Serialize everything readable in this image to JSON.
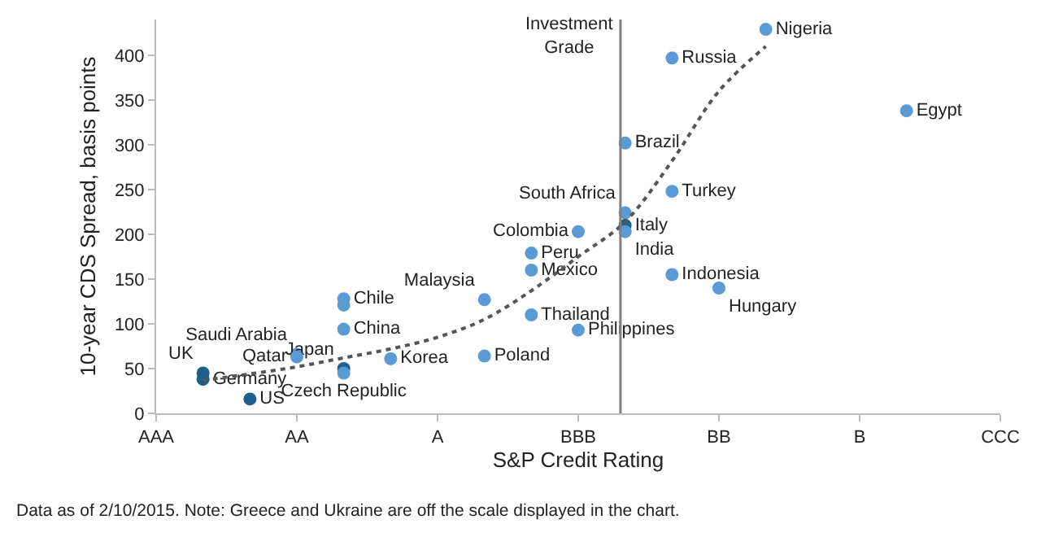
{
  "chart_data": {
    "type": "scatter",
    "xlabel": "S&P Credit Rating",
    "ylabel": "10-year CDS Spread, basis points",
    "categories": [
      "AAA",
      null,
      null,
      "AA",
      null,
      null,
      "A",
      null,
      null,
      "BBB",
      null,
      null,
      "BB",
      null,
      null,
      "B",
      null,
      null,
      "CCC"
    ],
    "ylim": [
      0,
      440
    ],
    "yticks": [
      0,
      50,
      100,
      150,
      200,
      250,
      300,
      350,
      400
    ],
    "grid": false,
    "marker": "circle",
    "series": [
      {
        "color": "#5b9bd5",
        "values": [
          null,
          45,
          16,
          66,
          50,
          61,
          null,
          127,
          179,
          203,
          224,
          397,
          140,
          429,
          null,
          null,
          338,
          null,
          null
        ],
        "colors": [
          null,
          "#1f5f8b",
          "#1f5f8b",
          "#5b9bd5",
          "#1f5f8b",
          "#5b9bd5",
          null,
          "#5b9bd5",
          "#5b9bd5",
          "#5b9bd5",
          "#5b9bd5",
          "#5b9bd5",
          "#5b9bd5",
          "#5b9bd5",
          null,
          null,
          "#5b9bd5",
          null,
          null
        ],
        "value_labels": [
          null,
          "UK",
          "US",
          "Saudi Arabia",
          "Japan",
          "Korea",
          null,
          "Malaysia",
          "Peru",
          "Colombia",
          "South Africa",
          "Russia",
          "Hungary",
          "Nigeria",
          null,
          null,
          "Egypt",
          null,
          null
        ]
      },
      {
        "color": "#5b9bd5",
        "values": [
          null,
          38,
          null,
          63,
          45,
          null,
          null,
          64,
          160,
          93,
          210,
          248,
          null,
          null,
          null,
          null,
          null,
          null,
          null
        ],
        "colors": [
          null,
          "#1f5f8b",
          null,
          "#5b9bd5",
          "#5b9bd5",
          null,
          null,
          "#5b9bd5",
          "#5b9bd5",
          "#5b9bd5",
          "#1f5f8b",
          "#5b9bd5",
          null,
          null,
          null,
          null,
          null,
          null,
          null
        ],
        "value_labels": [
          null,
          "Germany",
          null,
          "Qatar",
          "Czech Republic",
          null,
          null,
          "Poland",
          "Mexico",
          "Philippines",
          "Italy",
          "Turkey",
          null,
          null,
          null,
          null,
          null,
          null,
          null
        ]
      },
      {
        "color": "#5b9bd5",
        "values": [
          null,
          null,
          null,
          null,
          128,
          null,
          null,
          null,
          110,
          null,
          203,
          155,
          null,
          null,
          null,
          null,
          null,
          null,
          null
        ],
        "value_labels": [
          null,
          null,
          null,
          null,
          "Chile",
          null,
          null,
          null,
          "Thailand",
          null,
          "India",
          "Indonesia",
          null,
          null,
          null,
          null,
          null,
          null,
          null
        ]
      },
      {
        "color": "#5b9bd5",
        "values": [
          null,
          null,
          null,
          null,
          121,
          null,
          null,
          null,
          null,
          null,
          302,
          null,
          null,
          null,
          null,
          null,
          null,
          null,
          null
        ],
        "value_labels": [
          null,
          null,
          null,
          null,
          null,
          null,
          null,
          null,
          null,
          null,
          "Brazil",
          null,
          null,
          null,
          null,
          null,
          null,
          null,
          null
        ]
      },
      {
        "color": "#5b9bd5",
        "values": [
          null,
          null,
          null,
          null,
          94,
          null,
          null,
          null,
          null,
          null,
          null,
          null,
          null,
          null,
          null,
          null,
          null,
          null,
          null
        ],
        "value_labels": [
          null,
          null,
          null,
          null,
          "China",
          null,
          null,
          null,
          null,
          null,
          null,
          null,
          null,
          null,
          null,
          null,
          null,
          null,
          null
        ]
      },
      {
        "type": "line",
        "color": "#555555",
        "line_style": "dotted",
        "marker": "none",
        "values": [
          null,
          37,
          44,
          52,
          62,
          72,
          85,
          105,
          137,
          175,
          214,
          282,
          360,
          410,
          null,
          null,
          null,
          null,
          null
        ]
      }
    ],
    "annotations": [
      "Investment Grade",
      "Data as of 2/10/2015. Note: Greece and Ukraine are off the scale displayed in the chart."
    ]
  }
}
